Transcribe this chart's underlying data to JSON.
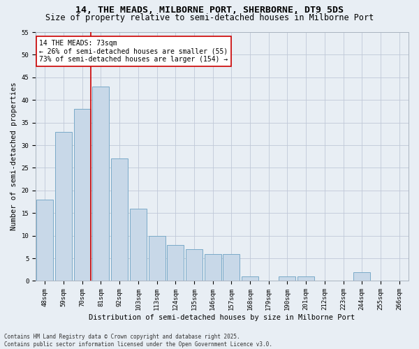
{
  "title": "14, THE MEADS, MILBORNE PORT, SHERBORNE, DT9 5DS",
  "subtitle": "Size of property relative to semi-detached houses in Milborne Port",
  "xlabel": "Distribution of semi-detached houses by size in Milborne Port",
  "ylabel": "Number of semi-detached properties",
  "categories": [
    "48sqm",
    "59sqm",
    "70sqm",
    "81sqm",
    "92sqm",
    "103sqm",
    "113sqm",
    "124sqm",
    "135sqm",
    "146sqm",
    "157sqm",
    "168sqm",
    "179sqm",
    "190sqm",
    "201sqm",
    "212sqm",
    "223sqm",
    "244sqm",
    "255sqm",
    "266sqm"
  ],
  "values": [
    18,
    33,
    38,
    43,
    27,
    16,
    10,
    8,
    7,
    6,
    6,
    1,
    0,
    1,
    1,
    0,
    0,
    2,
    0,
    0
  ],
  "bar_color": "#c8d8e8",
  "bar_edge_color": "#7aaac8",
  "highlight_index": 2,
  "highlight_color": "#cc0000",
  "annotation_title": "14 THE MEADS: 73sqm",
  "annotation_line1": "← 26% of semi-detached houses are smaller (55)",
  "annotation_line2": "73% of semi-detached houses are larger (154) →",
  "annotation_box_color": "#cc0000",
  "ylim": [
    0,
    55
  ],
  "yticks": [
    0,
    5,
    10,
    15,
    20,
    25,
    30,
    35,
    40,
    45,
    50,
    55
  ],
  "grid_color": "#c0c8d8",
  "background_color": "#e8eef4",
  "footer_line1": "Contains HM Land Registry data © Crown copyright and database right 2025.",
  "footer_line2": "Contains public sector information licensed under the Open Government Licence v3.0.",
  "title_fontsize": 9.5,
  "subtitle_fontsize": 8.5,
  "tick_fontsize": 6.5,
  "ylabel_fontsize": 7.5,
  "xlabel_fontsize": 7.5,
  "annotation_fontsize": 7,
  "footer_fontsize": 5.5
}
